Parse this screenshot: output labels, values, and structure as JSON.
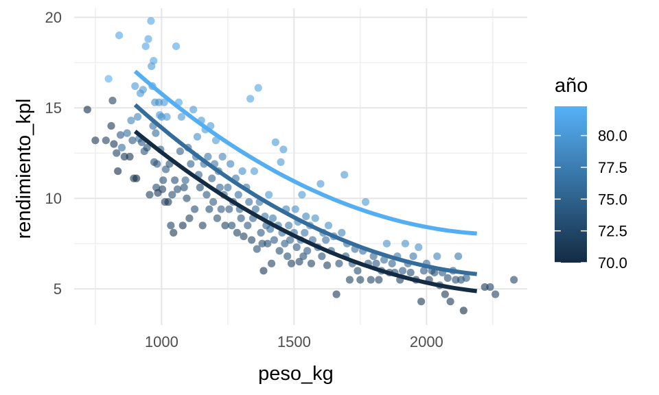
{
  "chart_data": {
    "type": "scatter",
    "xlabel": "peso_kg",
    "ylabel": "rendimiento_kpl",
    "xlim": [
      670,
      2380
    ],
    "ylim": [
      3,
      20.5
    ],
    "x_ticks": [
      1000,
      1500,
      2000
    ],
    "y_ticks": [
      5,
      10,
      15,
      20
    ],
    "x_tick_labels": [
      "1000",
      "1500",
      "2000"
    ],
    "y_tick_labels": [
      "5",
      "10",
      "15",
      "20"
    ],
    "grid": true,
    "legend": {
      "title": "año",
      "position": "right",
      "type": "colorbar",
      "range": [
        70,
        82.3
      ],
      "ticks": [
        70.0,
        72.5,
        75.0,
        77.5,
        80.0
      ],
      "tick_labels": [
        "70.0",
        "72.5",
        "75.0",
        "77.5",
        "80.0"
      ],
      "color_low": "#132B43",
      "color_high": "#56B1F7"
    },
    "point_opacity": 0.6,
    "points": [
      [
        720,
        14.9,
        70
      ],
      [
        750,
        13.2,
        71
      ],
      [
        790,
        13.2,
        72
      ],
      [
        800,
        16.6,
        82
      ],
      [
        810,
        14.0,
        71
      ],
      [
        815,
        15.4,
        72
      ],
      [
        820,
        13.0,
        71
      ],
      [
        830,
        12.5,
        72
      ],
      [
        835,
        11.5,
        70
      ],
      [
        840,
        19.0,
        81
      ],
      [
        845,
        13.5,
        74
      ],
      [
        850,
        12.8,
        76
      ],
      [
        860,
        12.3,
        71
      ],
      [
        870,
        13.6,
        76
      ],
      [
        880,
        12.3,
        71
      ],
      [
        885,
        14.3,
        78
      ],
      [
        890,
        13.2,
        74
      ],
      [
        895,
        11.1,
        71
      ],
      [
        900,
        16.2,
        80
      ],
      [
        905,
        11.1,
        70
      ],
      [
        910,
        14.5,
        78
      ],
      [
        915,
        13.3,
        77
      ],
      [
        920,
        15.8,
        80
      ],
      [
        925,
        13.1,
        74
      ],
      [
        930,
        16.0,
        80
      ],
      [
        935,
        12.6,
        74
      ],
      [
        940,
        18.4,
        81
      ],
      [
        945,
        12.8,
        73
      ],
      [
        950,
        18.8,
        81
      ],
      [
        955,
        10.2,
        72
      ],
      [
        960,
        19.8,
        81
      ],
      [
        962,
        17.3,
        80
      ],
      [
        965,
        16.2,
        79
      ],
      [
        968,
        14.0,
        76
      ],
      [
        970,
        17.6,
        81
      ],
      [
        972,
        12.0,
        73
      ],
      [
        975,
        15.3,
        79
      ],
      [
        978,
        13.6,
        76
      ],
      [
        980,
        10.6,
        73
      ],
      [
        983,
        11.9,
        74
      ],
      [
        986,
        10.3,
        71
      ],
      [
        990,
        15.3,
        79
      ],
      [
        993,
        14.6,
        80
      ],
      [
        996,
        12.7,
        75
      ],
      [
        1000,
        14.5,
        79
      ],
      [
        1003,
        10.5,
        72
      ],
      [
        1006,
        11.0,
        73
      ],
      [
        1010,
        15.3,
        80
      ],
      [
        1013,
        9.8,
        72
      ],
      [
        1016,
        11.6,
        74
      ],
      [
        1020,
        14.5,
        80
      ],
      [
        1025,
        9.8,
        71
      ],
      [
        1030,
        11.9,
        73
      ],
      [
        1035,
        8.5,
        72
      ],
      [
        1040,
        10.2,
        73
      ],
      [
        1045,
        8.1,
        71
      ],
      [
        1050,
        11.0,
        73
      ],
      [
        1055,
        18.4,
        81
      ],
      [
        1060,
        10.5,
        73
      ],
      [
        1065,
        15.3,
        81
      ],
      [
        1070,
        12.6,
        75
      ],
      [
        1075,
        14.5,
        80
      ],
      [
        1080,
        8.5,
        71
      ],
      [
        1085,
        10.6,
        73
      ],
      [
        1090,
        11.0,
        75
      ],
      [
        1095,
        10.0,
        73
      ],
      [
        1100,
        12.8,
        76
      ],
      [
        1105,
        8.9,
        72
      ],
      [
        1110,
        11.9,
        75
      ],
      [
        1120,
        14.9,
        80
      ],
      [
        1125,
        9.4,
        73
      ],
      [
        1130,
        12.3,
        76
      ],
      [
        1135,
        13.4,
        79
      ],
      [
        1140,
        11.3,
        75
      ],
      [
        1145,
        10.6,
        73
      ],
      [
        1150,
        14.3,
        80
      ],
      [
        1155,
        8.5,
        72
      ],
      [
        1160,
        11.9,
        76
      ],
      [
        1165,
        13.8,
        80
      ],
      [
        1170,
        10.2,
        74
      ],
      [
        1175,
        12.3,
        77
      ],
      [
        1180,
        9.4,
        73
      ],
      [
        1185,
        14.0,
        80
      ],
      [
        1190,
        11.1,
        75
      ],
      [
        1195,
        9.8,
        74
      ],
      [
        1200,
        11.9,
        77
      ],
      [
        1205,
        13.2,
        80
      ],
      [
        1210,
        8.9,
        73
      ],
      [
        1215,
        11.5,
        76
      ],
      [
        1220,
        10.6,
        75
      ],
      [
        1225,
        9.4,
        74
      ],
      [
        1230,
        12.3,
        78
      ],
      [
        1235,
        10.2,
        75
      ],
      [
        1240,
        8.5,
        72
      ],
      [
        1250,
        10.6,
        76
      ],
      [
        1255,
        9.4,
        74
      ],
      [
        1260,
        11.9,
        78
      ],
      [
        1265,
        8.5,
        73
      ],
      [
        1270,
        9.8,
        75
      ],
      [
        1280,
        11.1,
        77
      ],
      [
        1285,
        8.1,
        72
      ],
      [
        1290,
        10.2,
        76
      ],
      [
        1295,
        9.4,
        75
      ],
      [
        1300,
        8.9,
        74
      ],
      [
        1305,
        11.5,
        79
      ],
      [
        1310,
        7.9,
        72
      ],
      [
        1320,
        10.6,
        77
      ],
      [
        1325,
        8.5,
        74
      ],
      [
        1330,
        9.8,
        76
      ],
      [
        1335,
        15.5,
        81
      ],
      [
        1340,
        7.7,
        72
      ],
      [
        1345,
        8.9,
        75
      ],
      [
        1350,
        11.5,
        80
      ],
      [
        1355,
        9.4,
        76
      ],
      [
        1360,
        7.2,
        73
      ],
      [
        1365,
        16.1,
        81
      ],
      [
        1370,
        9.8,
        77
      ],
      [
        1375,
        8.1,
        74
      ],
      [
        1380,
        7.5,
        73
      ],
      [
        1385,
        6.0,
        71
      ],
      [
        1390,
        9.0,
        77
      ],
      [
        1395,
        8.5,
        75
      ],
      [
        1400,
        7.5,
        73
      ],
      [
        1405,
        10.2,
        80
      ],
      [
        1410,
        8.3,
        76
      ],
      [
        1415,
        6.4,
        72
      ],
      [
        1420,
        8.9,
        77
      ],
      [
        1425,
        7.7,
        74
      ],
      [
        1430,
        13.1,
        80
      ],
      [
        1440,
        8.5,
        77
      ],
      [
        1445,
        7.1,
        73
      ],
      [
        1450,
        12.0,
        80
      ],
      [
        1455,
        8.1,
        76
      ],
      [
        1460,
        12.7,
        80
      ],
      [
        1465,
        7.5,
        75
      ],
      [
        1470,
        9.4,
        78
      ],
      [
        1475,
        6.8,
        73
      ],
      [
        1480,
        8.5,
        77
      ],
      [
        1485,
        7.7,
        75
      ],
      [
        1490,
        6.4,
        72
      ],
      [
        1500,
        8.1,
        76
      ],
      [
        1505,
        9.4,
        79
      ],
      [
        1510,
        7.3,
        74
      ],
      [
        1515,
        8.7,
        78
      ],
      [
        1520,
        6.5,
        72
      ],
      [
        1525,
        7.7,
        76
      ],
      [
        1530,
        10.2,
        80
      ],
      [
        1535,
        6.8,
        73
      ],
      [
        1540,
        8.1,
        77
      ],
      [
        1545,
        9.0,
        78
      ],
      [
        1550,
        7.1,
        74
      ],
      [
        1560,
        8.5,
        78
      ],
      [
        1565,
        6.4,
        72
      ],
      [
        1570,
        7.7,
        76
      ],
      [
        1580,
        8.9,
        79
      ],
      [
        1590,
        7.3,
        75
      ],
      [
        1600,
        10.8,
        80
      ],
      [
        1605,
        6.8,
        73
      ],
      [
        1610,
        8.1,
        77
      ],
      [
        1620,
        7.7,
        76
      ],
      [
        1625,
        6.3,
        72
      ],
      [
        1630,
        8.5,
        79
      ],
      [
        1640,
        7.1,
        75
      ],
      [
        1650,
        7.9,
        77
      ],
      [
        1660,
        4.7,
        71
      ],
      [
        1670,
        6.4,
        73
      ],
      [
        1680,
        8.1,
        78
      ],
      [
        1690,
        11.3,
        80
      ],
      [
        1695,
        6.8,
        74
      ],
      [
        1700,
        7.5,
        76
      ],
      [
        1710,
        5.5,
        72
      ],
      [
        1720,
        6.4,
        74
      ],
      [
        1730,
        7.2,
        76
      ],
      [
        1740,
        6.0,
        73
      ],
      [
        1750,
        5.5,
        72
      ],
      [
        1760,
        7.1,
        76
      ],
      [
        1770,
        9.8,
        80
      ],
      [
        1780,
        6.4,
        74
      ],
      [
        1790,
        5.5,
        72
      ],
      [
        1800,
        6.8,
        75
      ],
      [
        1810,
        6.4,
        74
      ],
      [
        1820,
        5.5,
        72
      ],
      [
        1830,
        6.0,
        73
      ],
      [
        1840,
        6.6,
        76
      ],
      [
        1850,
        7.5,
        79
      ],
      [
        1860,
        5.9,
        72
      ],
      [
        1870,
        6.4,
        75
      ],
      [
        1880,
        5.9,
        73
      ],
      [
        1890,
        6.8,
        77
      ],
      [
        1900,
        5.5,
        72
      ],
      [
        1910,
        6.0,
        74
      ],
      [
        1920,
        7.5,
        79
      ],
      [
        1930,
        6.4,
        75
      ],
      [
        1940,
        5.9,
        73
      ],
      [
        1950,
        6.8,
        77
      ],
      [
        1960,
        5.5,
        72
      ],
      [
        1970,
        7.3,
        79
      ],
      [
        1980,
        4.3,
        71
      ],
      [
        1990,
        6.0,
        74
      ],
      [
        2000,
        6.4,
        76
      ],
      [
        2010,
        5.5,
        72
      ],
      [
        2020,
        6.0,
        74
      ],
      [
        2030,
        5.9,
        73
      ],
      [
        2040,
        6.8,
        78
      ],
      [
        2050,
        5.2,
        72
      ],
      [
        2060,
        5.9,
        74
      ],
      [
        2070,
        4.7,
        71
      ],
      [
        2080,
        5.6,
        73
      ],
      [
        2090,
        4.3,
        71
      ],
      [
        2100,
        6.0,
        75
      ],
      [
        2110,
        5.5,
        73
      ],
      [
        2120,
        6.8,
        77
      ],
      [
        2130,
        5.5,
        73
      ],
      [
        2140,
        3.8,
        70
      ],
      [
        2150,
        5.6,
        74
      ],
      [
        2220,
        5.1,
        71
      ],
      [
        2240,
        5.1,
        72
      ],
      [
        2260,
        4.7,
        72
      ],
      [
        2330,
        5.5,
        72
      ]
    ],
    "curves": [
      {
        "year": 70,
        "x": [
          900,
          2190
        ],
        "a": 4e-06,
        "h": 2400,
        "k": 4.7
      },
      {
        "year": 76,
        "x": [
          900,
          2190
        ],
        "a": 4.5e-06,
        "h": 2350,
        "k": 5.7
      },
      {
        "year": 82,
        "x": [
          900,
          2190
        ],
        "a": 4.6e-06,
        "h": 2300,
        "k": 8.0
      }
    ]
  }
}
